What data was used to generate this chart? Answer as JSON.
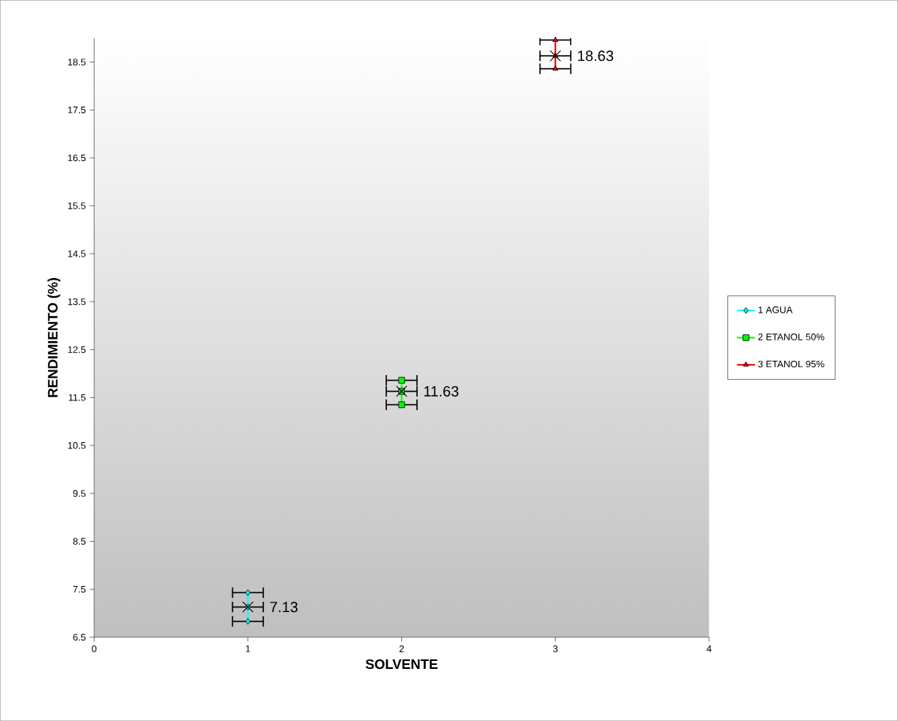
{
  "chart_data": {
    "type": "line",
    "xlabel": "SOLVENTE",
    "ylabel": "RENDIMIENTO (%)",
    "xlim": [
      0,
      4
    ],
    "xticks": [
      0,
      1,
      2,
      3,
      4
    ],
    "ylim": [
      6.5,
      19
    ],
    "yticks": [
      6.5,
      7.5,
      8.5,
      9.5,
      10.5,
      11.5,
      12.5,
      13.5,
      14.5,
      15.5,
      16.5,
      17.5,
      18.5
    ],
    "grid": false,
    "legend": "right",
    "series": [
      {
        "name": "1  AGUA",
        "color": "#00ffff",
        "marker": "diamond",
        "x": [
          1,
          1,
          1
        ],
        "values": [
          6.83,
          7.13,
          7.43
        ],
        "xerrors": [
          0.1,
          0.1,
          0.1
        ]
      },
      {
        "name": "2  ETANOL 50%",
        "color": "#00ff00",
        "marker": "square",
        "x": [
          2,
          2,
          2
        ],
        "values": [
          11.35,
          11.63,
          11.86
        ],
        "xerrors": [
          0.1,
          0.1,
          0.1
        ]
      },
      {
        "name": "3  ETANOL 95%",
        "color": "#ff0000",
        "marker": "triangle",
        "x": [
          3,
          3,
          3
        ],
        "values": [
          18.36,
          18.63,
          18.96
        ],
        "xerrors": [
          0.1,
          0.1,
          0.1
        ]
      },
      {
        "color": "#000000",
        "type": "scatter",
        "marker": "cross",
        "x": [
          1,
          2,
          3
        ],
        "values": [
          7.13,
          11.63,
          18.63
        ],
        "value_labels": [
          "7.13",
          "11.63",
          "18.63"
        ]
      }
    ]
  }
}
